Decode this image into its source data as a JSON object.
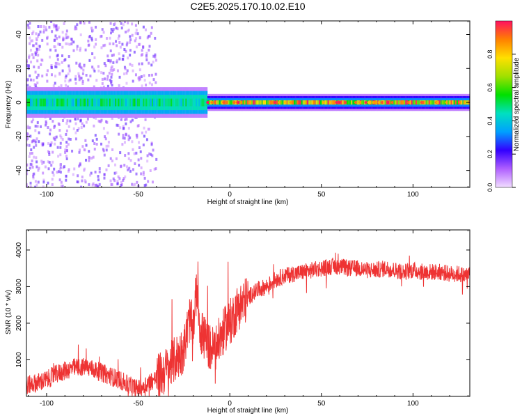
{
  "title": "C2E5.2025.170.10.02.E10",
  "colors": {
    "snr_line": "#ee3333",
    "background_top": "#ffffff",
    "axis": "#000000"
  },
  "chart_data": [
    {
      "type": "heatmap",
      "xlabel": "Height of straight line (km)",
      "ylabel": "Frequency (Hz)",
      "xlim": [
        -111,
        131
      ],
      "ylim": [
        -50,
        48
      ],
      "xticks": [
        -100,
        -50,
        0,
        50,
        100
      ],
      "yticks": [
        -40,
        -20,
        0,
        20,
        40
      ],
      "colorbar": {
        "label": "Normalized spectral amplitude",
        "range": [
          0.0,
          1.0
        ],
        "ticks": [
          0.0,
          0.2,
          0.4,
          0.6,
          0.8
        ],
        "tick_labels": [
          "0.0",
          "0.2",
          "0.4",
          "0.6",
          "0.8"
        ],
        "colormap": [
          "#f2ddff",
          "#b060ff",
          "#3300ff",
          "#00a0ff",
          "#00e0c0",
          "#00e000",
          "#a0e000",
          "#ffe000",
          "#ff8000",
          "#ff1060"
        ]
      },
      "band_center_hz": 0,
      "features": {
        "scatter_region_x": [
          -111,
          -40
        ],
        "scatter_freq_extent_hz": [
          -50,
          48
        ],
        "core_band_halfwidth_hz": 5,
        "peak_region_x": [
          0,
          131
        ]
      }
    },
    {
      "type": "line",
      "xlabel": "Height of straight line (km)",
      "ylabel": "SNR (10 * v/v)",
      "xlim": [
        -111,
        131
      ],
      "ylim": [
        0,
        4550
      ],
      "xticks": [
        -100,
        -50,
        0,
        50,
        100
      ],
      "yticks": [
        1000,
        2000,
        3000,
        4000
      ],
      "series": [
        {
          "x": [
            -111,
            -105,
            -100,
            -95,
            -90,
            -85,
            -80,
            -75,
            -70,
            -65,
            -60,
            -55,
            -50,
            -45,
            -40,
            -35,
            -30,
            -25,
            -22,
            -20,
            -18,
            -16,
            -14,
            -12,
            -10,
            -8,
            -6,
            -4,
            -2,
            0,
            2,
            4,
            6,
            8,
            10,
            12,
            15,
            20,
            25,
            30,
            35,
            40,
            45,
            50,
            55,
            60,
            65,
            70,
            75,
            80,
            85,
            90,
            95,
            100,
            105,
            110,
            115,
            120,
            125,
            128,
            131
          ],
          "y": [
            300,
            380,
            450,
            600,
            700,
            780,
            800,
            750,
            650,
            550,
            450,
            300,
            200,
            350,
            500,
            700,
            1000,
            1300,
            2100,
            1900,
            3000,
            1800,
            1600,
            1400,
            1300,
            1300,
            1500,
            1700,
            1900,
            2000,
            2200,
            2400,
            2500,
            2600,
            2700,
            2800,
            2900,
            3000,
            3200,
            3300,
            3350,
            3400,
            3450,
            3500,
            3550,
            3550,
            3500,
            3500,
            3450,
            3450,
            3500,
            3450,
            3400,
            3450,
            3400,
            3400,
            3400,
            3350,
            3350,
            3300,
            3350
          ]
        }
      ]
    }
  ]
}
